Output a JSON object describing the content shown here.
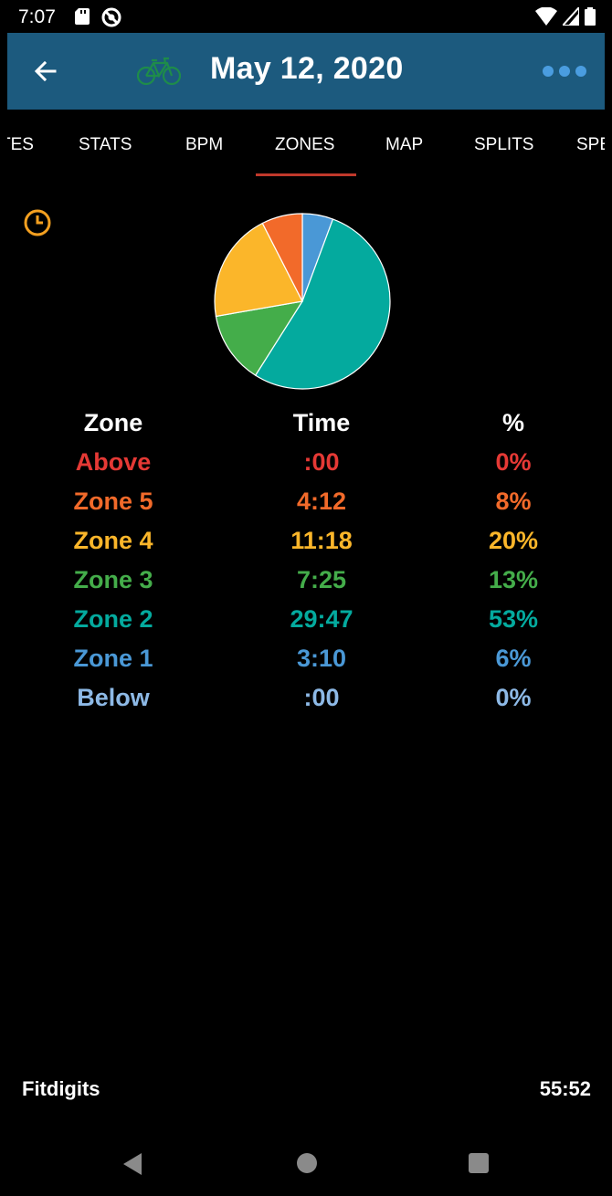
{
  "status_bar": {
    "time": "7:07"
  },
  "app_bar": {
    "title": "May 12, 2020",
    "bike_color": "#1e8c4a",
    "background": "#1c5a7e"
  },
  "tabs": [
    {
      "label": "TES"
    },
    {
      "label": "STATS"
    },
    {
      "label": "BPM"
    },
    {
      "label": "ZONES",
      "active": true
    },
    {
      "label": "MAP"
    },
    {
      "label": "SPLITS"
    },
    {
      "label": "SPE"
    }
  ],
  "table": {
    "headers": {
      "zone": "Zone",
      "time": "Time",
      "percent": "%"
    },
    "rows": [
      {
        "zone": "Above",
        "time": ":00",
        "percent": "0%",
        "color": "#e53935"
      },
      {
        "zone": "Zone 5",
        "time": "4:12",
        "percent": "8%",
        "color": "#f26a2a"
      },
      {
        "zone": "Zone 4",
        "time": "11:18",
        "percent": "20%",
        "color": "#fbb62a"
      },
      {
        "zone": "Zone 3",
        "time": "7:25",
        "percent": "13%",
        "color": "#44ad4a"
      },
      {
        "zone": "Zone 2",
        "time": "29:47",
        "percent": "53%",
        "color": "#04aa9e"
      },
      {
        "zone": "Zone 1",
        "time": "3:10",
        "percent": "6%",
        "color": "#4a98d6"
      },
      {
        "zone": "Below",
        "time": ":00",
        "percent": "0%",
        "color": "#8db9e6"
      }
    ]
  },
  "chart_data": {
    "type": "pie",
    "categories": [
      "Zone 1",
      "Zone 2",
      "Zone 3",
      "Zone 4",
      "Zone 5"
    ],
    "values": [
      190,
      1787,
      445,
      678,
      252
    ],
    "colors": [
      "#4a98d6",
      "#04aa9e",
      "#44ad4a",
      "#fbb62a",
      "#f26a2a"
    ]
  },
  "footer": {
    "app_name": "Fitdigits",
    "total_time": "55:52"
  }
}
